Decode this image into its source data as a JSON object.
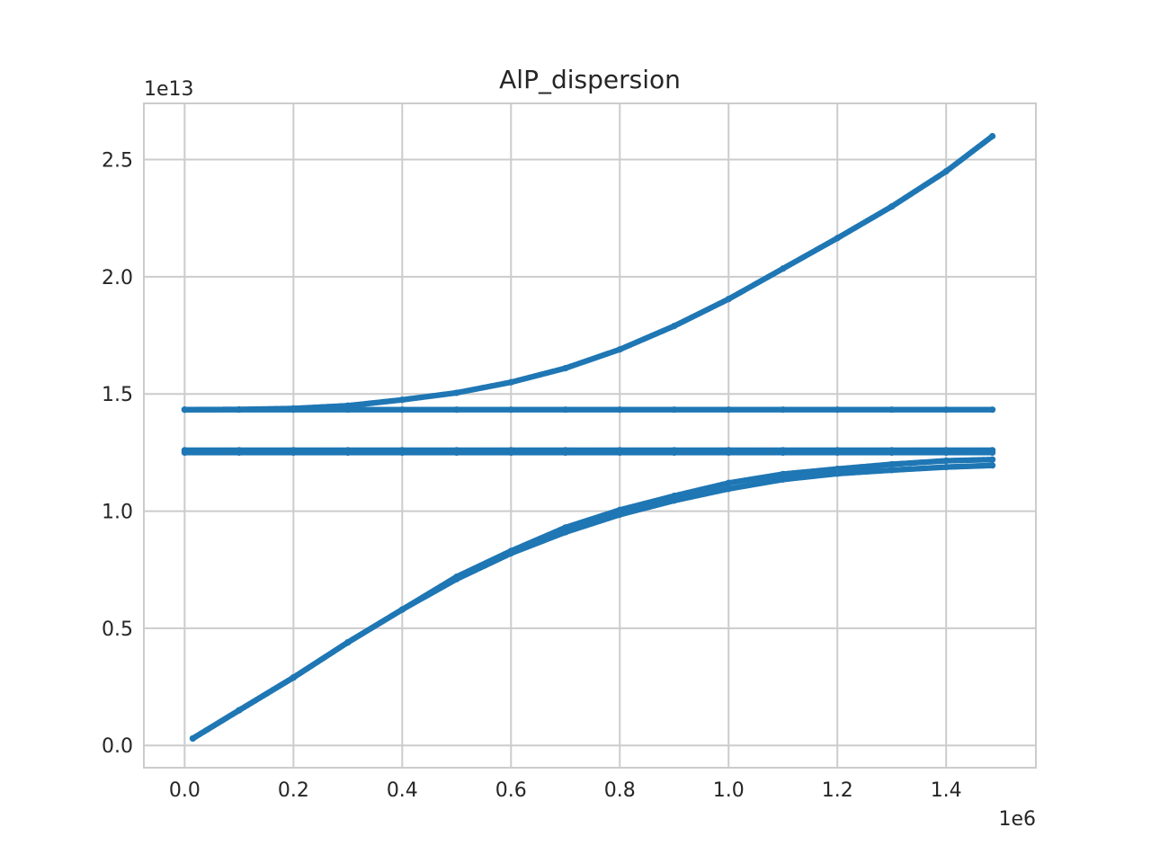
{
  "chart_data": {
    "type": "scatter",
    "title": "AlP_dispersion",
    "xlabel": "",
    "ylabel": "",
    "x_multiplier_label": "1e6",
    "y_multiplier_label": "1e13",
    "xlim": [
      -75000,
      1565000
    ],
    "ylim": [
      -950000000000.0,
      27400000000000.0
    ],
    "x_ticks": [
      0,
      200000,
      400000,
      600000,
      800000,
      1000000,
      1200000,
      1400000
    ],
    "x_tick_labels": [
      "0.0",
      "0.2",
      "0.4",
      "0.6",
      "0.8",
      "1.0",
      "1.2",
      "1.4"
    ],
    "y_ticks": [
      0,
      5000000000000.0,
      10000000000000.0,
      15000000000000.0,
      20000000000000.0,
      25000000000000.0
    ],
    "y_tick_labels": [
      "0.0",
      "0.5",
      "1.0",
      "1.5",
      "2.0",
      "2.5"
    ],
    "grid": true,
    "marker_color": "#1f77b4",
    "series": [
      {
        "x": [
          0,
          100000,
          200000,
          300000,
          400000,
          500000,
          600000,
          700000,
          800000,
          900000,
          1000000,
          1100000,
          1200000,
          1300000,
          1400000,
          1485000
        ],
        "y": [
          14330000000000.0,
          14340000000000.0,
          14380000000000.0,
          14500000000000.0,
          14750000000000.0,
          15050000000000.0,
          15500000000000.0,
          16100000000000.0,
          16900000000000.0,
          17900000000000.0,
          19050000000000.0,
          20350000000000.0,
          21650000000000.0,
          23000000000000.0,
          24500000000000.0,
          26000000000000.0
        ]
      },
      {
        "x": [
          0,
          100000,
          200000,
          300000,
          400000,
          500000,
          600000,
          700000,
          800000,
          900000,
          1000000,
          1100000,
          1200000,
          1300000,
          1400000,
          1485000
        ],
        "y": [
          14330000000000.0,
          14330000000000.0,
          14330000000000.0,
          14330000000000.0,
          14330000000000.0,
          14330000000000.0,
          14330000000000.0,
          14330000000000.0,
          14330000000000.0,
          14330000000000.0,
          14330000000000.0,
          14330000000000.0,
          14330000000000.0,
          14330000000000.0,
          14330000000000.0,
          14330000000000.0
        ]
      },
      {
        "x": [
          0,
          100000,
          200000,
          300000,
          400000,
          500000,
          600000,
          700000,
          800000,
          900000,
          1000000,
          1100000,
          1200000,
          1300000,
          1400000,
          1485000
        ],
        "y": [
          12600000000000.0,
          12600000000000.0,
          12600000000000.0,
          12600000000000.0,
          12600000000000.0,
          12600000000000.0,
          12600000000000.0,
          12600000000000.0,
          12600000000000.0,
          12600000000000.0,
          12600000000000.0,
          12600000000000.0,
          12600000000000.0,
          12600000000000.0,
          12600000000000.0,
          12600000000000.0
        ]
      },
      {
        "x": [
          0,
          100000,
          200000,
          300000,
          400000,
          500000,
          600000,
          700000,
          800000,
          900000,
          1000000,
          1100000,
          1200000,
          1300000,
          1400000,
          1485000
        ],
        "y": [
          12500000000000.0,
          12500000000000.0,
          12500000000000.0,
          12500000000000.0,
          12500000000000.0,
          12500000000000.0,
          12500000000000.0,
          12500000000000.0,
          12500000000000.0,
          12500000000000.0,
          12500000000000.0,
          12500000000000.0,
          12500000000000.0,
          12500000000000.0,
          12500000000000.0,
          12500000000000.0
        ]
      },
      {
        "x": [
          15000,
          100000,
          200000,
          300000,
          400000,
          500000,
          600000,
          700000,
          800000,
          900000,
          1000000,
          1100000,
          1200000,
          1300000,
          1400000,
          1485000
        ],
        "y": [
          300000000000.0,
          1500000000000.0,
          2900000000000.0,
          4400000000000.0,
          5800000000000.0,
          7200000000000.0,
          8300000000000.0,
          9300000000000.0,
          10050000000000.0,
          10650000000000.0,
          11200000000000.0,
          11580000000000.0,
          11800000000000.0,
          12000000000000.0,
          12150000000000.0,
          12200000000000.0
        ]
      },
      {
        "x": [
          15000,
          100000,
          200000,
          300000,
          400000,
          500000,
          600000,
          700000,
          800000,
          900000,
          1000000,
          1100000,
          1200000,
          1300000,
          1400000,
          1485000
        ],
        "y": [
          300000000000.0,
          1500000000000.0,
          2900000000000.0,
          4400000000000.0,
          5800000000000.0,
          7100000000000.0,
          8200000000000.0,
          9100000000000.0,
          9850000000000.0,
          10450000000000.0,
          10950000000000.0,
          11350000000000.0,
          11600000000000.0,
          11750000000000.0,
          11880000000000.0,
          11950000000000.0
        ]
      }
    ]
  }
}
